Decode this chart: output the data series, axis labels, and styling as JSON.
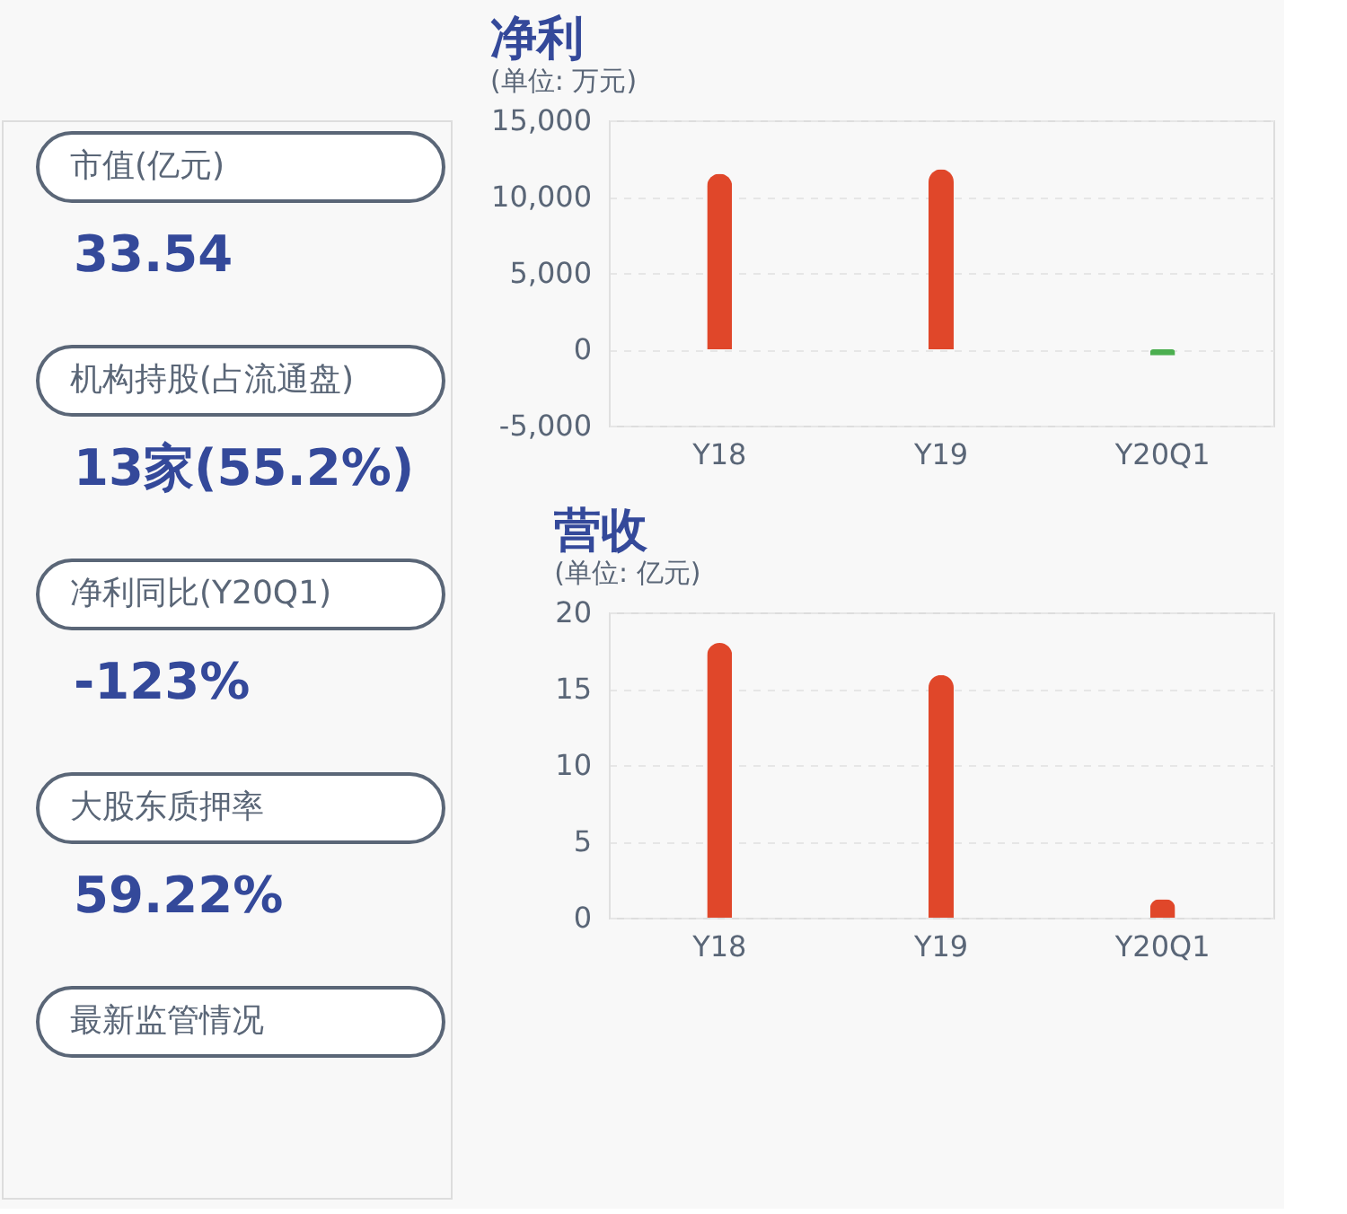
{
  "chart_data": [
    {
      "type": "other",
      "annotations": [
        "市值(亿元)",
        "33.54",
        "机构持股(占流通盘)",
        "13家(55.2%)",
        "净利同比(Y20Q1)",
        "-123%",
        "大股东质押率",
        "59.22%",
        "最新监管情况"
      ]
    },
    {
      "type": "bar",
      "title": "净利",
      "subtitle": "(单位: 万元)",
      "categories": [
        "Y18",
        "Y19",
        "Y20Q1"
      ],
      "values": [
        11500,
        11800,
        -400
      ],
      "colors": [
        "#e0472a",
        "#e0472a",
        "#4caf50"
      ],
      "ylim": [
        -5000,
        15000
      ],
      "yticks": [
        {
          "value": -5000,
          "label": "-5,000"
        },
        0,
        {
          "value": 5000,
          "label": "5,000"
        },
        {
          "value": 10000,
          "label": "10,000"
        },
        {
          "value": 15000,
          "label": "15,000"
        }
      ],
      "grid": "y"
    },
    {
      "type": "bar",
      "title": "营收",
      "subtitle": "(单位: 亿元)",
      "categories": [
        "Y18",
        "Y19",
        "Y20Q1"
      ],
      "values": [
        18.0,
        15.9,
        1.2
      ],
      "colors": [
        "#e0472a",
        "#e0472a",
        "#e0472a"
      ],
      "ylim": [
        0,
        20
      ],
      "yticks": [
        0,
        5,
        10,
        15,
        20
      ],
      "grid": "y"
    }
  ]
}
